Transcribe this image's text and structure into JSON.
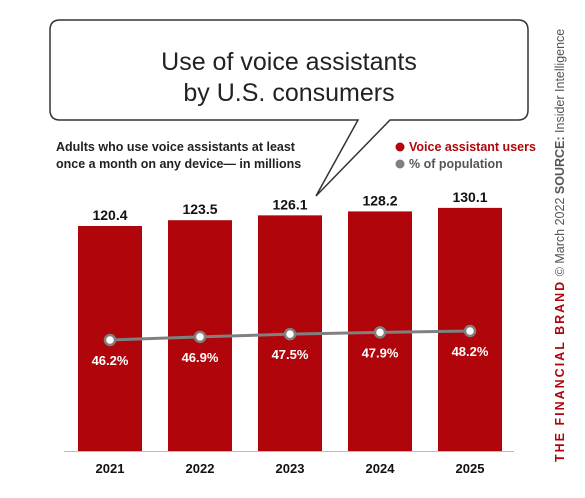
{
  "chart_data": {
    "type": "bar",
    "title_lines": [
      "Use of voice assistants",
      "by U.S. consumers"
    ],
    "subtitle_lines": [
      "Adults who use voice assistants at least",
      "once a month on any device— in millions"
    ],
    "categories": [
      "2021",
      "2022",
      "2023",
      "2024",
      "2025"
    ],
    "series": [
      {
        "name": "Voice assistant users",
        "type": "bar",
        "values": [
          120.4,
          123.5,
          126.1,
          128.2,
          130.1
        ],
        "labels": [
          "120.4",
          "123.5",
          "126.1",
          "128.2",
          "130.1"
        ]
      },
      {
        "name": "% of population",
        "type": "line",
        "values": [
          46.2,
          46.9,
          47.5,
          47.9,
          48.2
        ],
        "labels": [
          "46.2%",
          "46.9%",
          "47.5%",
          "47.9%",
          "48.2%"
        ]
      }
    ],
    "legend_position": "top-right",
    "grid": false,
    "colors": {
      "bar": "#b0050a",
      "line": "#808080"
    }
  },
  "footer": {
    "brand": "THE FINANCIAL BRAND",
    "copyright": "© March 2022",
    "source_label": "SOURCE:",
    "source": "Insider Intelligence"
  }
}
